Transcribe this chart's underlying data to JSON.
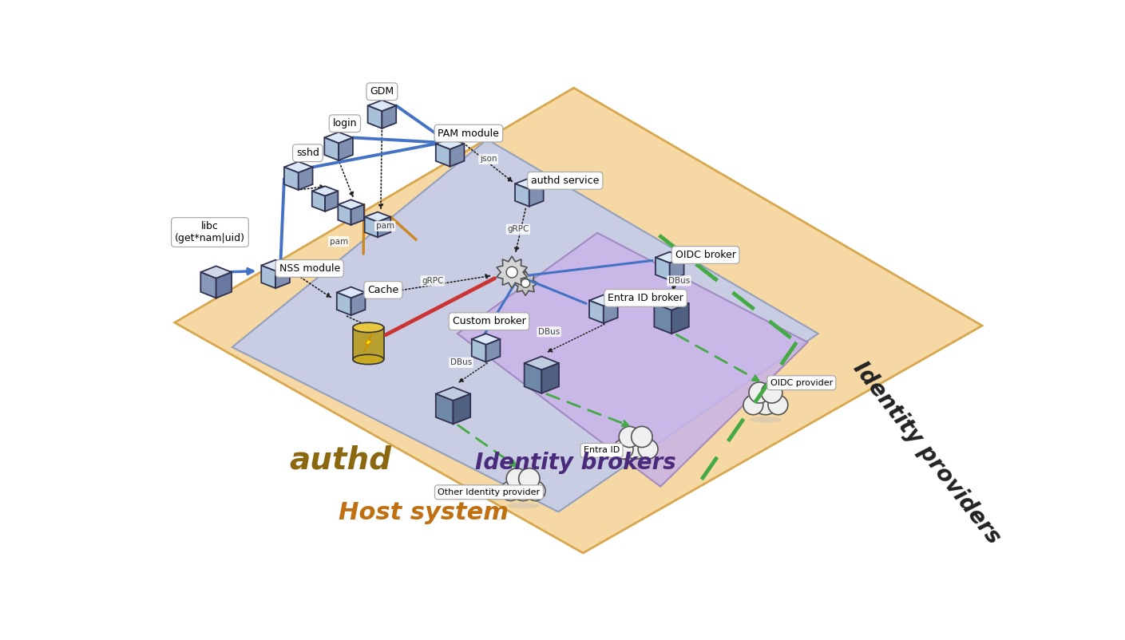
{
  "bg_color": "#ffffff",
  "host_color": "#f5d49a",
  "host_edge": "#d4a040",
  "authd_color": "#c2ccee",
  "authd_edge": "#8899bb",
  "broker_color": "#c8b4e8",
  "broker_edge": "#9980bb",
  "labels": {
    "gdm": "GDM",
    "login": "login",
    "sshd": "sshd",
    "libc": "libc\n(get*nam|uid)",
    "pam_module": "PAM module",
    "authd_service": "authd service",
    "nss_module": "NSS module",
    "cache": "Cache",
    "authd": "authd",
    "oidc_broker": "OIDC broker",
    "entra_id_broker": "Entra ID broker",
    "custom_broker": "Custom broker",
    "identity_brokers": "Identity brokers",
    "host_system": "Host system",
    "identity_providers": "Identity providers",
    "oidc_provider": "OIDC provider",
    "entra_id": "Entra ID",
    "other_identity_provider": "Other Identity provider"
  },
  "edge_labels": {
    "json": "json",
    "pam1": "pam",
    "pam2": "pam",
    "grpc1": "gRPC",
    "grpc2": "gRPC",
    "dbus1": "DBus",
    "dbus2": "DBus",
    "dbus3": "DBus"
  },
  "cube_top": "#dce8f8",
  "cube_left": "#a8c0d8",
  "cube_right": "#8090b0",
  "cube_outline": "#303050",
  "gear_color": "#d8d8d8",
  "gear_outline": "#606060",
  "db_gold": "#e8c030",
  "db_side": "#c89010",
  "bolt_color": "#ffdd00",
  "bolt_edge": "#cc8800",
  "cloud_fill": "#f0f0f0",
  "cloud_edge": "#555555",
  "blue_line": "#4472c4",
  "orange_line": "#cc8822",
  "red_line": "#cc3333",
  "green_dash": "#44aa44",
  "black_dash": "#222222"
}
